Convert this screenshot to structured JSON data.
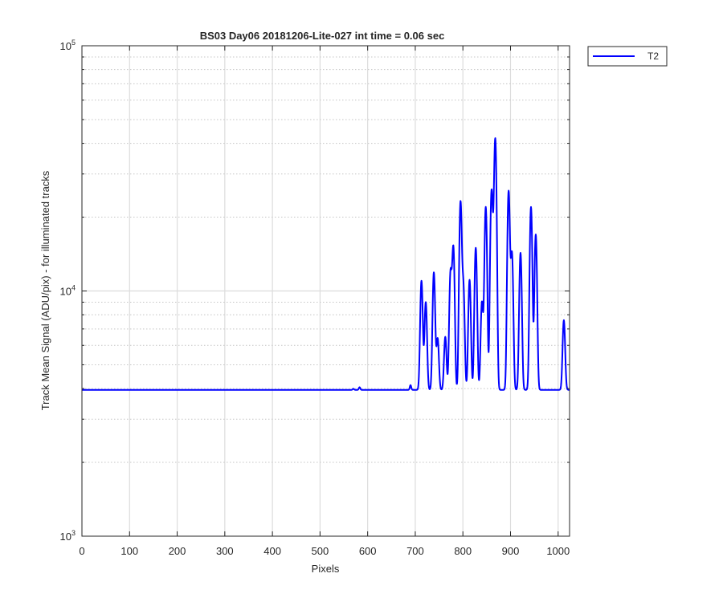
{
  "chart_data": {
    "type": "line",
    "title": "BS03 Day06 20181206-Lite-027 int time = 0.06 sec",
    "xlabel": "Pixels",
    "ylabel": "Track Mean Signal (ADU/pix) - for illuminated tracks",
    "xlim": [
      0,
      1024
    ],
    "ylim": [
      1000,
      100000
    ],
    "yscale": "log",
    "grid": true,
    "legend_position": "outside-top-right",
    "x_ticks": [
      0,
      100,
      200,
      300,
      400,
      500,
      600,
      700,
      800,
      900,
      1000
    ],
    "y_ticks": [
      {
        "value": 1000,
        "base": "10",
        "exp": "3"
      },
      {
        "value": 10000,
        "base": "10",
        "exp": "4"
      },
      {
        "value": 100000,
        "base": "10",
        "exp": "5"
      }
    ],
    "baseline": 3950,
    "series": [
      {
        "name": "T2",
        "color": "#0000ff",
        "peaks": [
          {
            "x": 570,
            "y": 3990
          },
          {
            "x": 583,
            "y": 4050
          },
          {
            "x": 690,
            "y": 4130
          },
          {
            "x": 713,
            "y": 11000
          },
          {
            "x": 722,
            "y": 9000
          },
          {
            "x": 739,
            "y": 11900
          },
          {
            "x": 747,
            "y": 6400
          },
          {
            "x": 763,
            "y": 6500
          },
          {
            "x": 774,
            "y": 11800
          },
          {
            "x": 780,
            "y": 15000
          },
          {
            "x": 795,
            "y": 23000
          },
          {
            "x": 801,
            "y": 10300
          },
          {
            "x": 814,
            "y": 11100
          },
          {
            "x": 827,
            "y": 15000
          },
          {
            "x": 840,
            "y": 9000
          },
          {
            "x": 848,
            "y": 22000
          },
          {
            "x": 860,
            "y": 24000
          },
          {
            "x": 863,
            "y": 7600
          },
          {
            "x": 868,
            "y": 41500
          },
          {
            "x": 896,
            "y": 25500
          },
          {
            "x": 903,
            "y": 14200
          },
          {
            "x": 921,
            "y": 14300
          },
          {
            "x": 943,
            "y": 22000
          },
          {
            "x": 953,
            "y": 17000
          },
          {
            "x": 1012,
            "y": 7600
          }
        ]
      }
    ]
  }
}
